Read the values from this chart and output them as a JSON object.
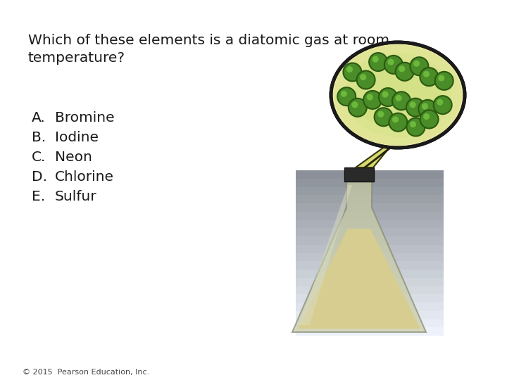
{
  "title_line1": "Which of these elements is a diatomic gas at room",
  "title_line2": "temperature?",
  "options": [
    [
      "A.",
      "Bromine"
    ],
    [
      "B.",
      "Iodine"
    ],
    [
      "C.",
      "Neon"
    ],
    [
      "D.",
      "Chlorine"
    ],
    [
      "E.",
      "Sulfur"
    ]
  ],
  "footer": "© 2015  Pearson Education, Inc.",
  "background_color": "#ffffff",
  "text_color": "#1a1a1a",
  "title_fontsize": 14.5,
  "options_fontsize": 14.5,
  "footer_fontsize": 8,
  "oval_bg_color": "#e8e8a0",
  "oval_border_color": "#1a1a1a",
  "molecule_color": "#4a8c28",
  "molecule_dark": "#2a5a10",
  "flask_bg_color": "#b0b8c0",
  "flask_liquid_color": "#ddd8a0",
  "flask_glass_color": "#d0d4b8",
  "stopper_color": "#2a2a2a",
  "tail_color": "#d8d870"
}
